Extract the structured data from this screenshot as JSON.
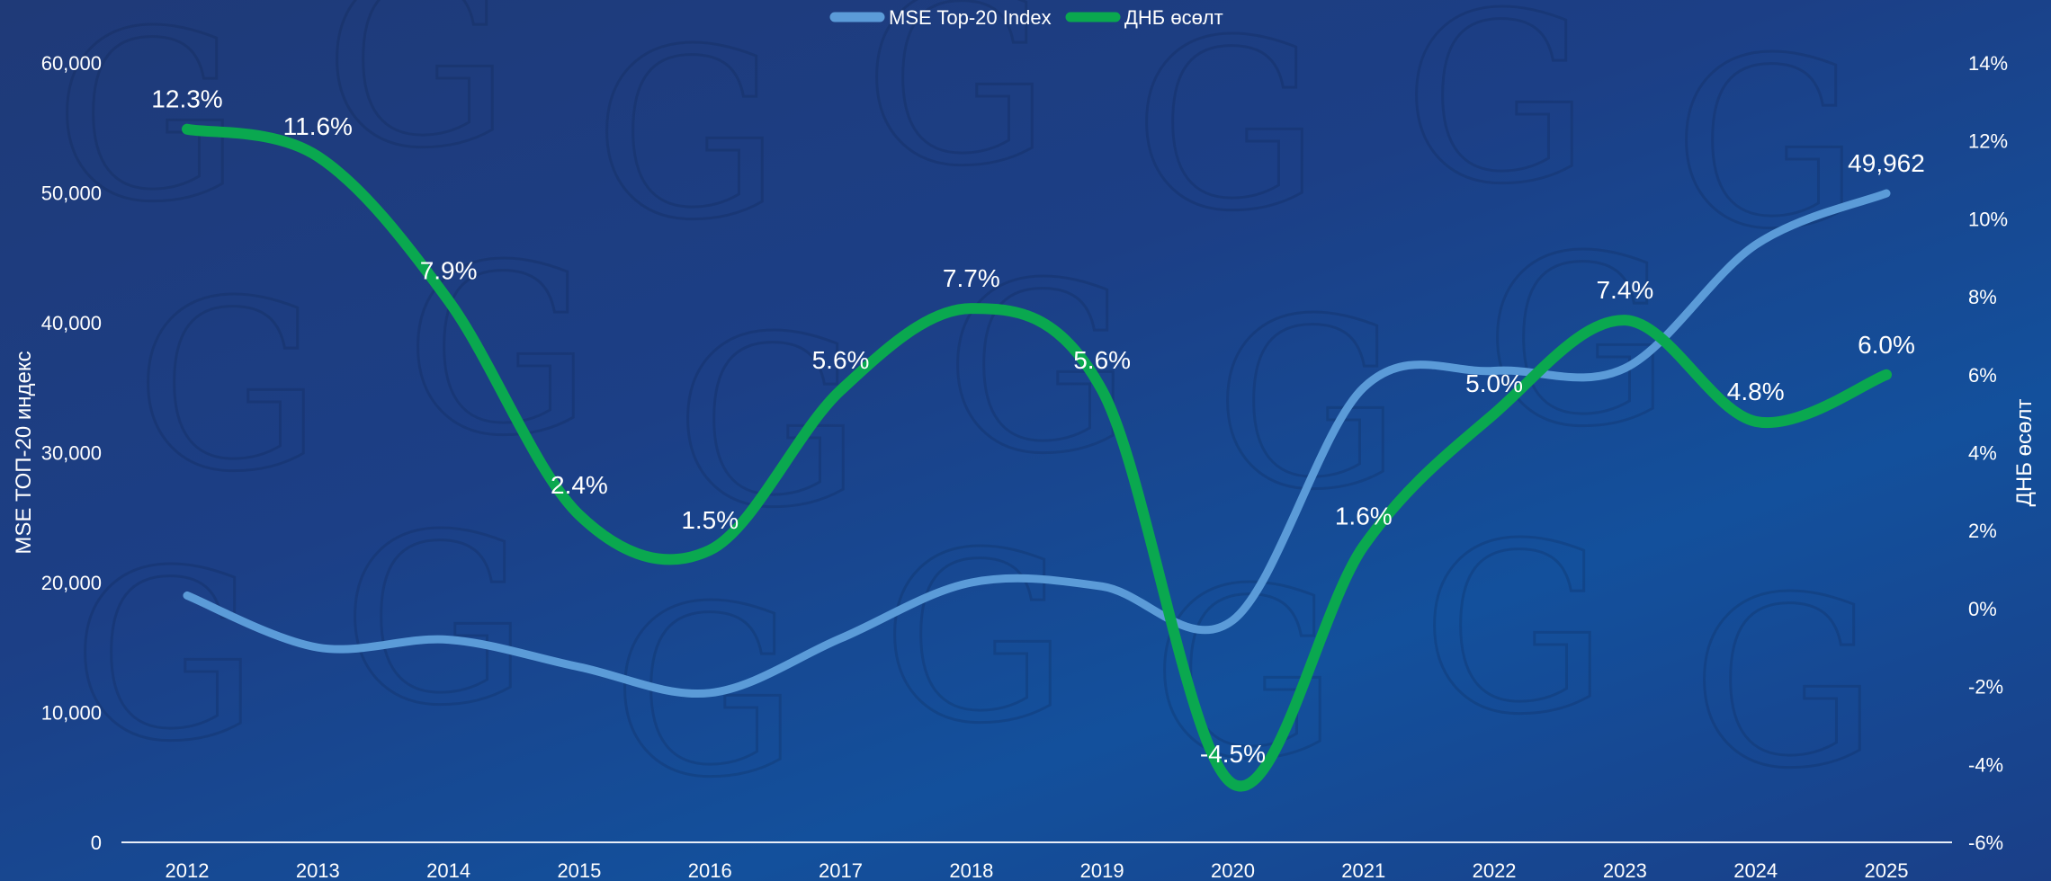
{
  "chart_data": {
    "type": "line",
    "title": "",
    "x": [
      "2012",
      "2013",
      "2014",
      "2015",
      "2016",
      "2017",
      "2018",
      "2019",
      "2020",
      "2021",
      "2022",
      "2023",
      "2024",
      "2025"
    ],
    "series": [
      {
        "name": "MSE Top-20 Index",
        "axis": "left",
        "color": "#5b9bd8",
        "values": [
          19000,
          15000,
          15600,
          13500,
          11500,
          15700,
          20000,
          19700,
          17100,
          35000,
          36300,
          36500,
          46000,
          49962
        ],
        "labels": [
          "",
          "",
          "",
          "",
          "",
          "",
          "",
          "",
          "",
          "",
          "",
          "",
          "",
          "49,962"
        ]
      },
      {
        "name": "ДНБ өсөлт",
        "axis": "right",
        "color": "#0aa84f",
        "values": [
          12.3,
          11.6,
          7.9,
          2.4,
          1.5,
          5.6,
          7.7,
          5.6,
          -4.5,
          1.6,
          5.0,
          7.4,
          4.8,
          6.0
        ],
        "labels": [
          "12.3%",
          "11.6%",
          "7.9%",
          "2.4%",
          "1.5%",
          "5.6%",
          "7.7%",
          "5.6%",
          "-4.5%",
          "1.6%",
          "5.0%",
          "7.4%",
          "4.8%",
          "6.0%"
        ]
      }
    ],
    "left_axis": {
      "label": "MSE ТОП-20 индекс",
      "ylim": [
        0,
        60000
      ],
      "ticks": [
        0,
        10000,
        20000,
        30000,
        40000,
        50000,
        60000
      ],
      "tick_labels": [
        "0",
        "10,000",
        "20,000",
        "30,000",
        "40,000",
        "50,000",
        "60,000"
      ]
    },
    "right_axis": {
      "label": "ДНБ өсөлт",
      "ylim": [
        -6,
        14
      ],
      "ticks": [
        -6,
        -4,
        -2,
        0,
        2,
        4,
        6,
        8,
        10,
        12,
        14
      ],
      "tick_labels": [
        "-6%",
        "-4%",
        "-2%",
        "0%",
        "2%",
        "4%",
        "6%",
        "8%",
        "10%",
        "12%",
        "14%"
      ]
    },
    "grid": false,
    "legend": "top-center"
  }
}
